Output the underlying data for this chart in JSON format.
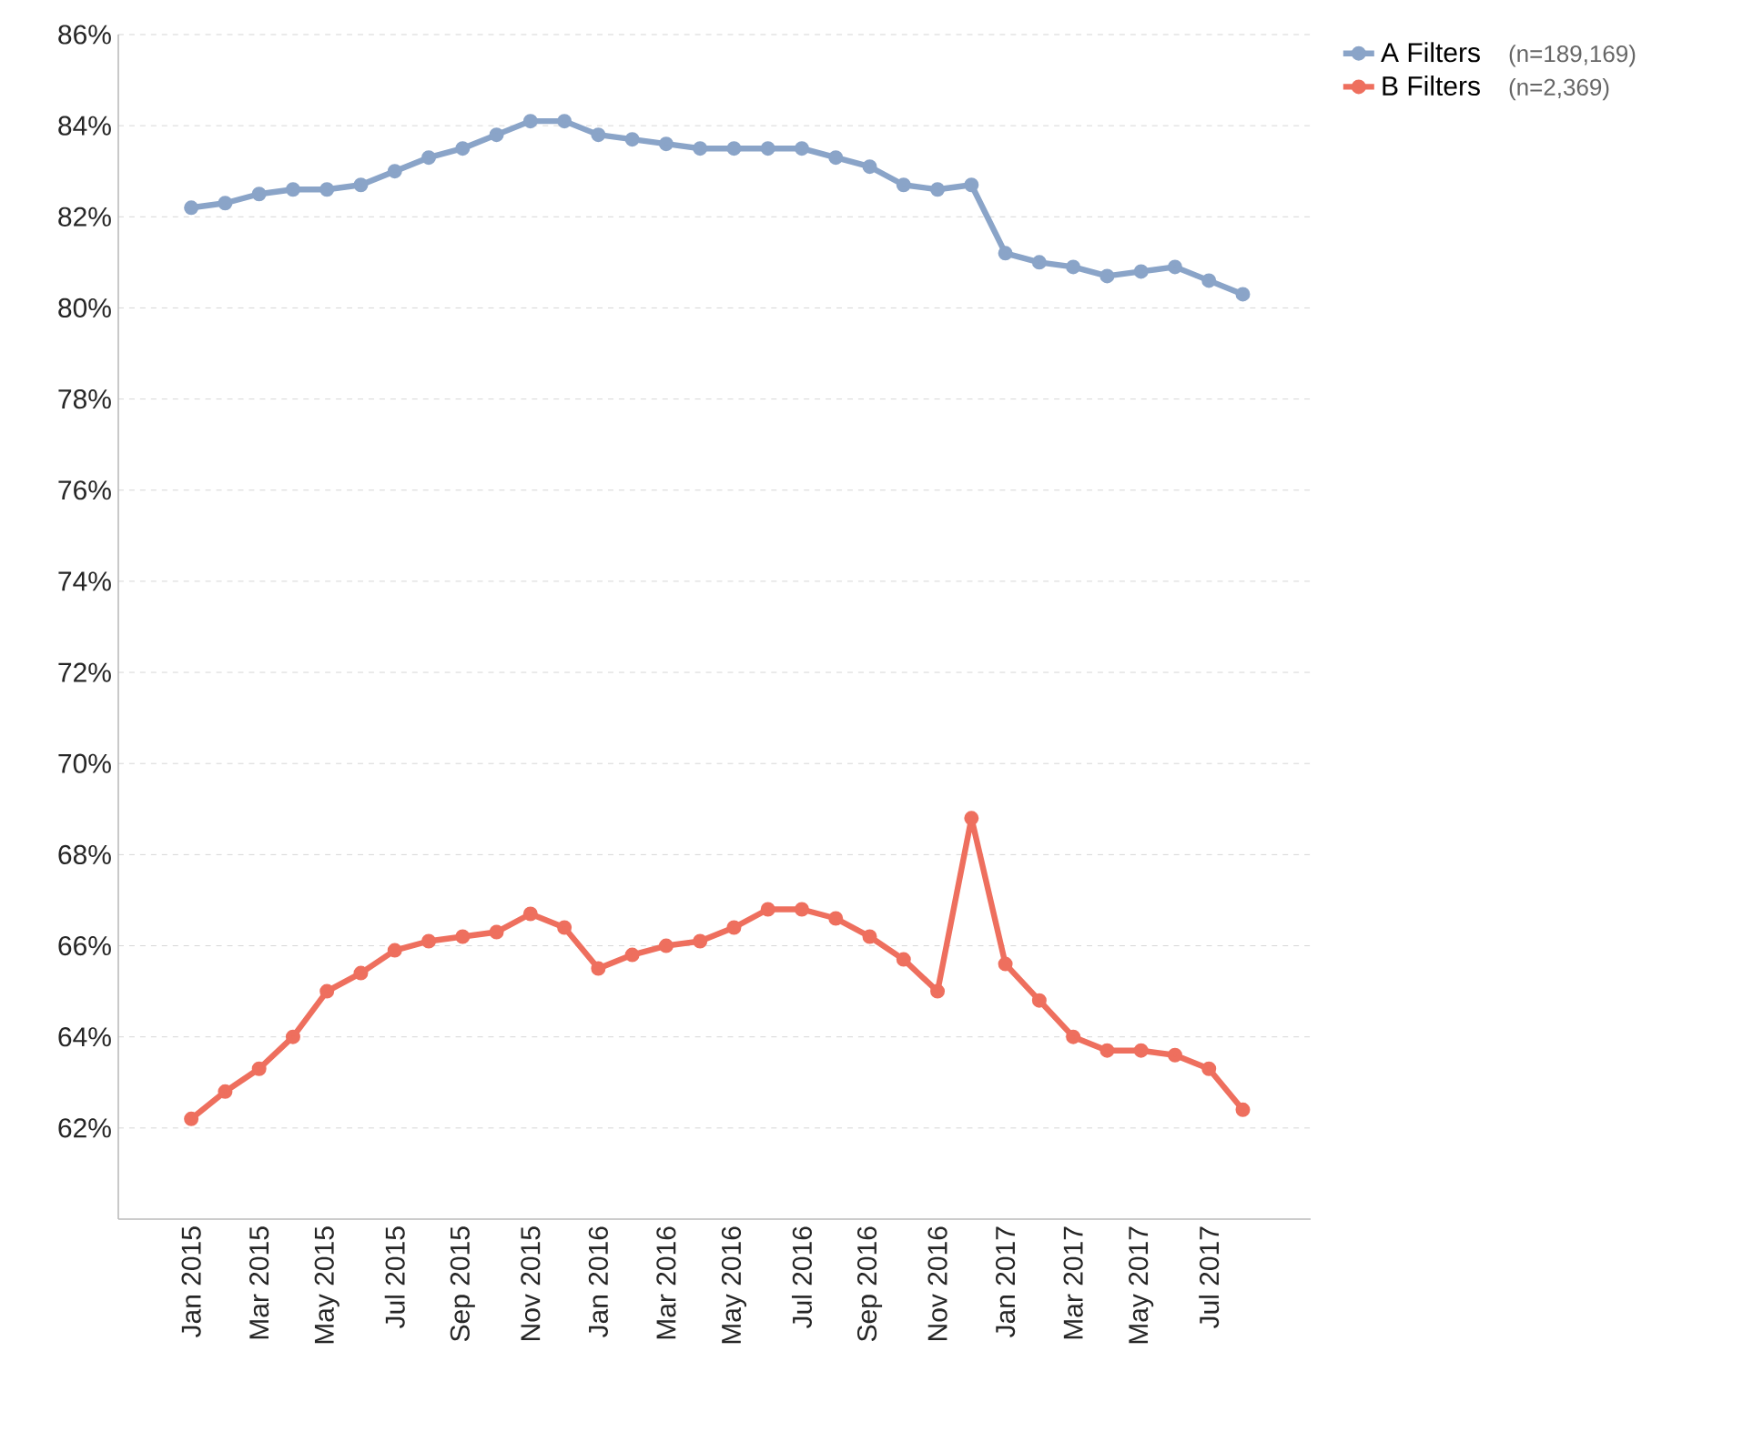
{
  "chart_data": {
    "type": "line",
    "categories": [
      "Jan 2015",
      null,
      "Mar 2015",
      null,
      "May 2015",
      null,
      "Jul 2015",
      null,
      "Sep 2015",
      null,
      "Nov 2015",
      null,
      "Jan 2016",
      null,
      "Mar 2016",
      null,
      "May 2016",
      null,
      "Jul 2016",
      null,
      "Sep 2016",
      null,
      "Nov 2016",
      null,
      "Jan 2017",
      null,
      "Mar 2017",
      null,
      "May 2017",
      null,
      "Jul 2017",
      null
    ],
    "series": [
      {
        "name": "A Filters",
        "color": "#8aa4c8",
        "values": [
          82.2,
          82.3,
          82.5,
          82.6,
          82.6,
          82.7,
          83.0,
          83.3,
          83.5,
          83.8,
          84.1,
          84.1,
          83.8,
          83.7,
          83.6,
          83.5,
          83.5,
          83.5,
          83.5,
          83.3,
          83.1,
          82.7,
          82.6,
          82.7,
          81.2,
          81.0,
          80.9,
          80.7,
          80.8,
          80.9,
          80.6,
          80.3
        ]
      },
      {
        "name": "B Filters",
        "color": "#ee6f5e",
        "values": [
          62.2,
          62.8,
          63.3,
          64.0,
          65.0,
          65.4,
          65.9,
          66.1,
          66.2,
          66.3,
          66.7,
          66.4,
          65.5,
          65.8,
          66.0,
          66.1,
          66.4,
          66.8,
          66.8,
          66.6,
          66.2,
          65.7,
          65.0,
          68.8,
          65.6,
          64.8,
          64.0,
          63.7,
          63.7,
          63.6,
          63.3,
          62.4
        ]
      }
    ],
    "annotations": [
      "(n=189,169)",
      "(n=2,369)"
    ],
    "ylim": [
      60,
      86
    ],
    "yticks": [
      {
        "value": 62,
        "label": "62%"
      },
      {
        "value": 64,
        "label": "64%"
      },
      {
        "value": 66,
        "label": "66%"
      },
      {
        "value": 68,
        "label": "68%"
      },
      {
        "value": 70,
        "label": "70%"
      },
      {
        "value": 72,
        "label": "72%"
      },
      {
        "value": 74,
        "label": "74%"
      },
      {
        "value": 76,
        "label": "76%"
      },
      {
        "value": 78,
        "label": "78%"
      },
      {
        "value": 80,
        "label": "80%"
      },
      {
        "value": 82,
        "label": "82%"
      },
      {
        "value": 84,
        "label": "84%"
      },
      {
        "value": 86,
        "label": "86%"
      }
    ],
    "grid": "y",
    "legend": "top right",
    "marker": "circle",
    "line_style": "solid"
  }
}
